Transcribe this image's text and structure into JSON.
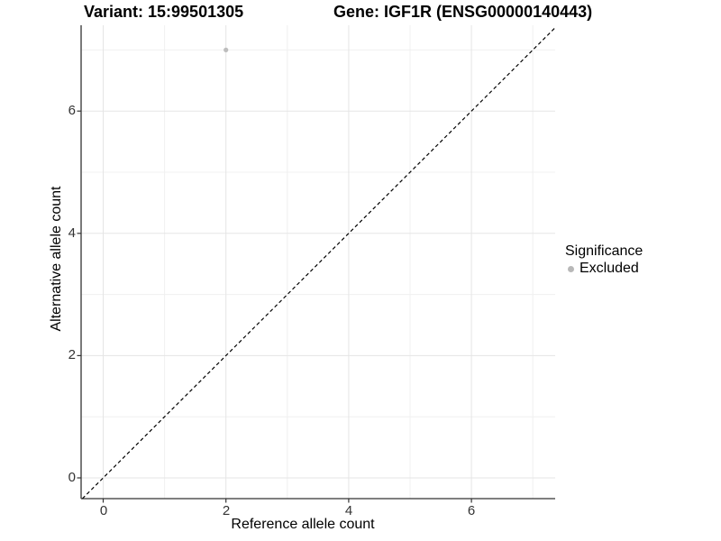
{
  "title": {
    "variant": "Variant: 15:99501305",
    "gene": "Gene: IGF1R (ENSG00000140443)"
  },
  "axes": {
    "x": {
      "label": "Reference allele count",
      "ticks": [
        "0",
        "2",
        "4",
        "6"
      ]
    },
    "y": {
      "label": "Alternative allele count",
      "ticks": [
        "0",
        "2",
        "4",
        "6"
      ]
    }
  },
  "legend": {
    "title": "Significance",
    "items": [
      {
        "label": "Excluded",
        "color": "#b8b8b8"
      }
    ]
  },
  "colors": {
    "background": "#ffffff",
    "grid_major": "#e5e5e5",
    "grid_minor": "#f0f0f0",
    "axis_line": "#333333",
    "identity_line": "#000000",
    "point": "#bdbdbd",
    "tick_text": "#333333"
  },
  "chart_data": {
    "type": "scatter",
    "title": "Variant: 15:99501305   Gene: IGF1R (ENSG00000140443)",
    "xlabel": "Reference allele count",
    "ylabel": "Alternative allele count",
    "xlim": [
      -0.36,
      7.36
    ],
    "ylim": [
      -0.34,
      7.4
    ],
    "x_major_ticks": [
      0,
      2,
      4,
      6
    ],
    "x_minor_ticks": [
      1,
      3,
      5,
      7
    ],
    "y_major_ticks": [
      0,
      2,
      4,
      6
    ],
    "y_minor_ticks": [
      1,
      3,
      5,
      7
    ],
    "grid": "major+minor",
    "legend_position": "right",
    "series": [
      {
        "name": "Excluded",
        "color": "#bdbdbd",
        "points": [
          {
            "x": 2,
            "y": 7
          }
        ]
      }
    ],
    "reference_line": {
      "type": "identity y=x",
      "style": "dashed",
      "color": "#000000"
    }
  }
}
